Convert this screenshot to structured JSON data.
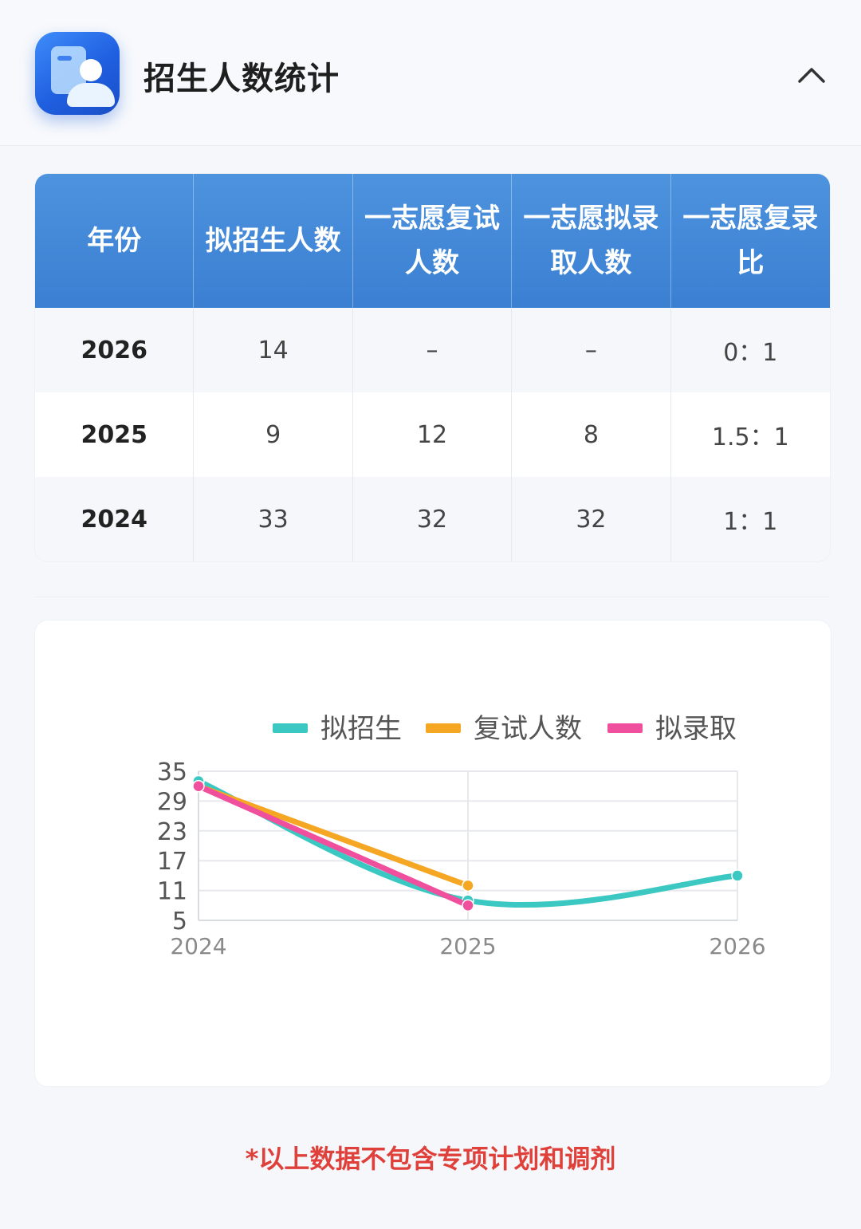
{
  "header": {
    "title": "招生人数统计",
    "app_icon": "admissions-profile-icon",
    "collapse_icon": "chevron-up-icon"
  },
  "table": {
    "columns": [
      "年份",
      "拟招生人数",
      "一志愿复试人数",
      "一志愿拟录取人数",
      "一志愿复录比"
    ],
    "rows": [
      [
        "2026",
        "14",
        "–",
        "–",
        "0：1"
      ],
      [
        "2025",
        "9",
        "12",
        "8",
        "1.5：1"
      ],
      [
        "2024",
        "33",
        "32",
        "32",
        "1：1"
      ]
    ]
  },
  "chart_data": {
    "type": "line",
    "x": [
      "2024",
      "2025",
      "2026"
    ],
    "series": [
      {
        "name": "拟招生",
        "values": [
          33,
          9,
          14
        ],
        "color": "#3cc8c2",
        "smooth": true
      },
      {
        "name": "复试人数",
        "values": [
          32,
          12,
          null
        ],
        "color": "#f5a623",
        "smooth": false
      },
      {
        "name": "拟录取",
        "values": [
          32,
          8,
          null
        ],
        "color": "#ef4f9c",
        "smooth": false
      }
    ],
    "yticks": [
      5,
      11,
      17,
      23,
      29,
      35
    ],
    "ylim": [
      5,
      35
    ],
    "legend": "top-center",
    "grid": true
  },
  "footnote": "*以上数据不包含专项计划和调剂"
}
